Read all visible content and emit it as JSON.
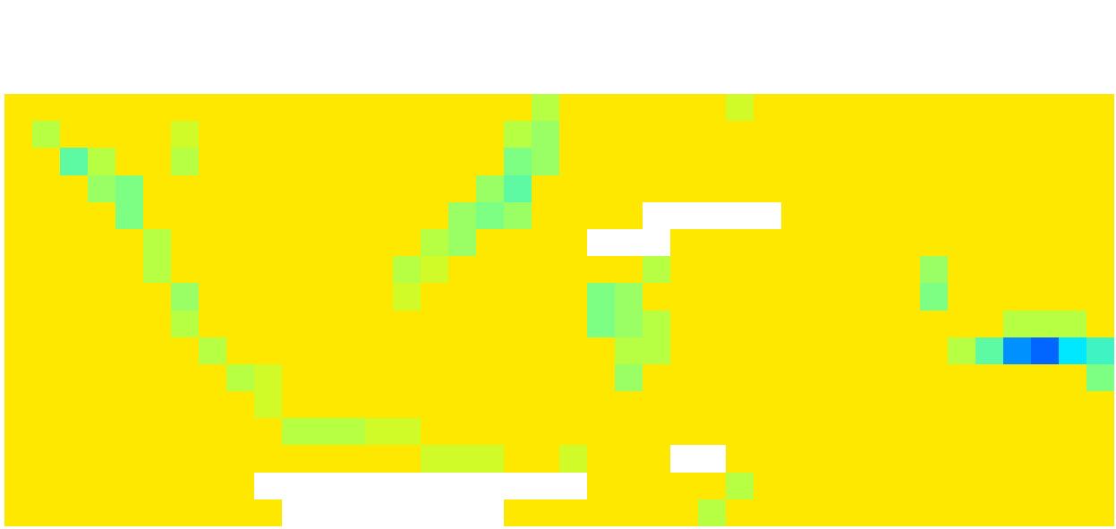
{
  "chart_data": {
    "type": "heatmap",
    "tick_labels": false,
    "zlim": [
      0,
      1
    ],
    "z": [
      [
        1,
        1,
        1,
        1,
        1,
        1,
        1,
        1,
        1,
        1,
        1,
        1,
        1,
        1,
        1,
        1,
        1,
        1,
        1,
        0.85,
        1,
        1,
        1,
        1,
        1,
        1,
        0.9,
        1,
        1,
        1,
        1,
        1,
        1,
        1,
        1,
        1,
        1,
        1,
        1,
        1
      ],
      [
        1,
        0.85,
        1,
        1,
        1,
        1,
        0.9,
        1,
        1,
        1,
        1,
        1,
        1,
        1,
        1,
        1,
        1,
        1,
        0.85,
        0.8,
        1,
        1,
        1,
        1,
        1,
        1,
        1,
        1,
        1,
        1,
        1,
        1,
        1,
        1,
        1,
        1,
        1,
        1,
        1,
        1
      ],
      [
        1,
        1,
        0.7,
        0.85,
        1,
        1,
        0.85,
        1,
        1,
        1,
        1,
        1,
        1,
        1,
        1,
        1,
        1,
        1,
        0.75,
        0.8,
        1,
        1,
        1,
        1,
        1,
        1,
        1,
        1,
        1,
        1,
        1,
        1,
        1,
        1,
        1,
        1,
        1,
        1,
        1,
        1
      ],
      [
        1,
        1,
        1,
        0.8,
        0.75,
        1,
        1,
        1,
        1,
        1,
        1,
        1,
        1,
        1,
        1,
        1,
        1,
        0.8,
        0.7,
        1,
        1,
        1,
        1,
        1,
        1,
        1,
        1,
        1,
        1,
        1,
        1,
        1,
        1,
        1,
        1,
        1,
        1,
        1,
        1,
        1
      ],
      [
        1,
        1,
        1,
        1,
        0.75,
        1,
        1,
        1,
        1,
        1,
        1,
        1,
        1,
        1,
        1,
        1,
        0.8,
        0.75,
        0.8,
        1,
        1,
        1,
        1,
        null,
        null,
        null,
        null,
        null,
        1,
        1,
        1,
        1,
        1,
        1,
        1,
        1,
        1,
        1,
        1,
        1
      ],
      [
        1,
        1,
        1,
        1,
        1,
        0.85,
        1,
        1,
        1,
        1,
        1,
        1,
        1,
        1,
        1,
        0.85,
        0.8,
        1,
        1,
        1,
        1,
        null,
        null,
        null,
        1,
        1,
        1,
        1,
        1,
        1,
        1,
        1,
        1,
        1,
        1,
        1,
        1,
        1,
        1,
        1
      ],
      [
        1,
        1,
        1,
        1,
        1,
        0.85,
        1,
        1,
        1,
        1,
        1,
        1,
        1,
        1,
        0.85,
        0.9,
        1,
        1,
        1,
        1,
        1,
        1,
        1,
        0.85,
        1,
        1,
        1,
        1,
        1,
        1,
        1,
        1,
        1,
        0.8,
        1,
        1,
        1,
        1,
        1,
        1
      ],
      [
        1,
        1,
        1,
        1,
        1,
        1,
        0.8,
        1,
        1,
        1,
        1,
        1,
        1,
        1,
        0.9,
        1,
        1,
        1,
        1,
        1,
        1,
        0.75,
        0.8,
        1,
        1,
        1,
        1,
        1,
        1,
        1,
        1,
        1,
        1,
        0.75,
        1,
        1,
        1,
        1,
        1,
        1
      ],
      [
        1,
        1,
        1,
        1,
        1,
        1,
        0.85,
        1,
        1,
        1,
        1,
        1,
        1,
        1,
        1,
        1,
        1,
        1,
        1,
        1,
        1,
        0.75,
        0.8,
        0.85,
        1,
        1,
        1,
        1,
        1,
        1,
        1,
        1,
        1,
        1,
        1,
        1,
        0.85,
        0.85,
        0.85,
        1
      ],
      [
        1,
        1,
        1,
        1,
        1,
        1,
        1,
        0.85,
        1,
        1,
        1,
        1,
        1,
        1,
        1,
        1,
        1,
        1,
        1,
        1,
        1,
        1,
        0.85,
        0.85,
        1,
        1,
        1,
        1,
        1,
        1,
        1,
        1,
        1,
        1,
        0.85,
        0.7,
        0.45,
        0.4,
        0.55,
        0.65
      ],
      [
        1,
        1,
        1,
        1,
        1,
        1,
        1,
        1,
        0.85,
        0.9,
        1,
        1,
        1,
        1,
        1,
        1,
        1,
        1,
        1,
        1,
        1,
        1,
        0.8,
        1,
        1,
        1,
        1,
        1,
        1,
        1,
        1,
        1,
        1,
        1,
        1,
        1,
        1,
        1,
        1,
        0.75
      ],
      [
        1,
        1,
        1,
        1,
        1,
        1,
        1,
        1,
        1,
        0.9,
        1,
        1,
        1,
        1,
        1,
        1,
        1,
        1,
        1,
        1,
        1,
        1,
        1,
        1,
        1,
        1,
        1,
        1,
        1,
        1,
        1,
        1,
        1,
        1,
        1,
        1,
        1,
        1,
        1,
        1
      ],
      [
        1,
        1,
        1,
        1,
        1,
        1,
        1,
        1,
        1,
        1,
        0.85,
        0.85,
        0.85,
        0.9,
        0.9,
        1,
        1,
        1,
        1,
        1,
        1,
        1,
        1,
        1,
        1,
        1,
        1,
        1,
        1,
        1,
        1,
        1,
        1,
        1,
        1,
        1,
        1,
        1,
        1,
        1
      ],
      [
        1,
        1,
        1,
        1,
        1,
        1,
        1,
        1,
        1,
        1,
        1,
        1,
        1,
        1,
        1,
        0.9,
        0.9,
        0.9,
        1,
        1,
        0.9,
        1,
        1,
        1,
        null,
        null,
        1,
        1,
        1,
        1,
        1,
        1,
        1,
        1,
        1,
        1,
        1,
        1,
        1,
        1
      ],
      [
        1,
        1,
        1,
        1,
        1,
        1,
        1,
        1,
        1,
        null,
        null,
        null,
        null,
        null,
        null,
        null,
        null,
        null,
        null,
        null,
        null,
        1,
        1,
        1,
        1,
        1,
        0.85,
        1,
        1,
        1,
        1,
        1,
        1,
        1,
        1,
        1,
        1,
        1,
        1,
        1
      ],
      [
        1,
        1,
        1,
        1,
        1,
        1,
        1,
        1,
        1,
        1,
        null,
        null,
        null,
        null,
        null,
        null,
        null,
        null,
        1,
        1,
        1,
        1,
        1,
        1,
        1,
        0.85,
        1,
        1,
        1,
        1,
        1,
        1,
        1,
        1,
        1,
        1,
        1,
        1,
        1,
        1
      ]
    ]
  }
}
